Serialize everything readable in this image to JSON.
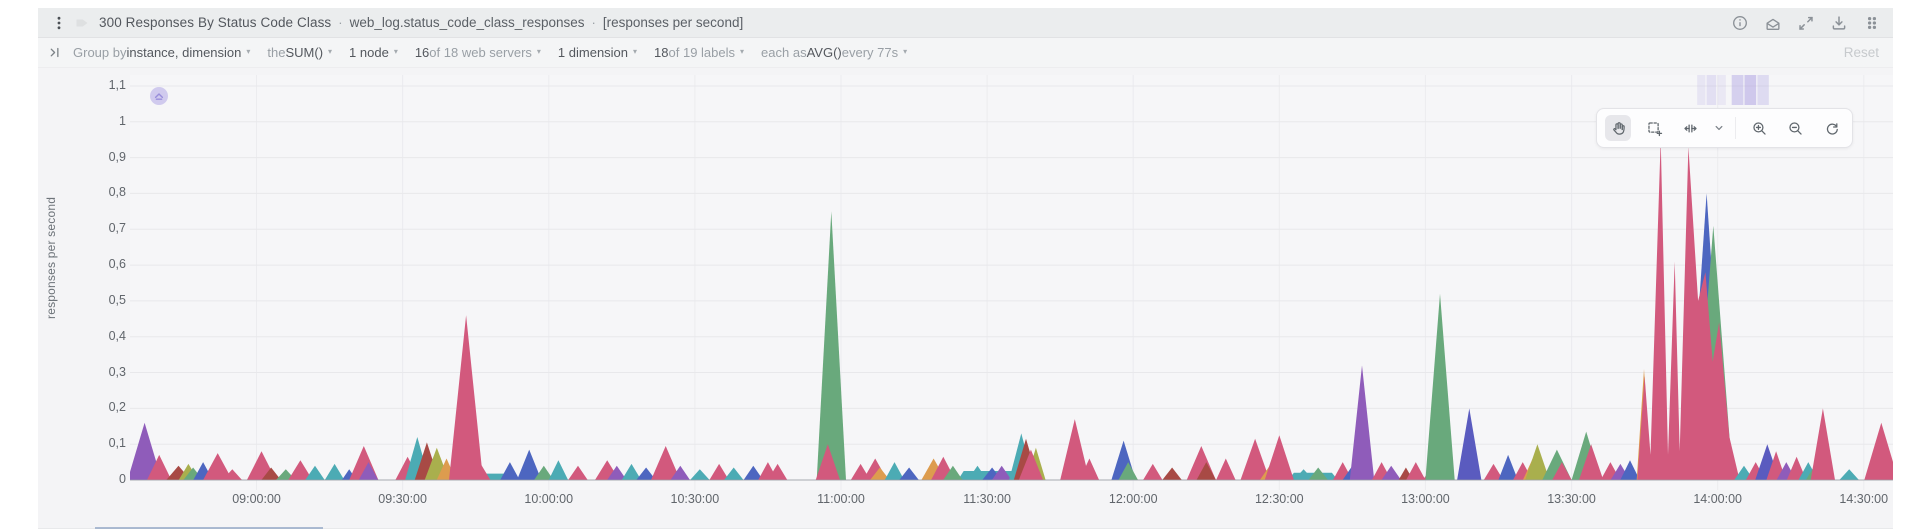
{
  "window": {
    "title_name": "300 Responses By Status Code Class",
    "separator": "·",
    "context": "web_log.status_code_class_responses",
    "units_suffix": "[responses per second]"
  },
  "header_icons": [
    "kebab-menu-icon",
    "tag-icon",
    "info-icon",
    "alerts-tray-icon",
    "expand-icon",
    "download-icon",
    "drag-handle-icon"
  ],
  "filter_toolbar": {
    "collapse_icon_name": "collapse-filters-icon",
    "reset_label": "Reset",
    "segments": [
      {
        "name": "group-by",
        "chevron": true,
        "parts": [
          {
            "t": "Group by ",
            "muted": true
          },
          {
            "t": "instance, dimension",
            "muted": false
          }
        ]
      },
      {
        "name": "aggregate-function",
        "chevron": true,
        "parts": [
          {
            "t": "the ",
            "muted": true
          },
          {
            "t": "SUM()",
            "muted": false
          }
        ]
      },
      {
        "name": "nodes",
        "chevron": true,
        "parts": [
          {
            "t": "1 node",
            "muted": false
          }
        ]
      },
      {
        "name": "instances",
        "chevron": true,
        "parts": [
          {
            "t": "16",
            "muted": false
          },
          {
            "t": " of 18 web servers",
            "muted": true
          }
        ]
      },
      {
        "name": "dimensions",
        "chevron": true,
        "parts": [
          {
            "t": "1 dimension",
            "muted": false
          }
        ]
      },
      {
        "name": "labels",
        "chevron": true,
        "parts": [
          {
            "t": "18",
            "muted": false
          },
          {
            "t": " of 19 labels",
            "muted": true
          }
        ]
      },
      {
        "name": "time-aggregate",
        "chevron": true,
        "parts": [
          {
            "t": "each as ",
            "muted": true
          },
          {
            "t": "AVG()",
            "muted": false
          },
          {
            "t": " every 77s",
            "muted": true
          }
        ]
      }
    ]
  },
  "chart_toolbar": {
    "active": "pan-icon",
    "icons": [
      "pan-icon",
      "select-area-icon",
      "horizontal-zoom-icon",
      "chevron-down-icon",
      "zoom-in-icon",
      "zoom-out-icon",
      "reset-zoom-icon"
    ]
  },
  "chart_data": {
    "type": "area",
    "title": "300 Responses By Status Code Class",
    "ylabel": "responses per second",
    "grid": true,
    "legend_position": "none",
    "x_start_hours": 8.567,
    "x_end_hours": 14.6,
    "x_ticks": [
      {
        "label": "09:00:00",
        "hours": 9.0
      },
      {
        "label": "09:30:00",
        "hours": 9.5
      },
      {
        "label": "10:00:00",
        "hours": 10.0
      },
      {
        "label": "10:30:00",
        "hours": 10.5
      },
      {
        "label": "11:00:00",
        "hours": 11.0
      },
      {
        "label": "11:30:00",
        "hours": 11.5
      },
      {
        "label": "12:00:00",
        "hours": 12.0
      },
      {
        "label": "12:30:00",
        "hours": 12.5
      },
      {
        "label": "13:00:00",
        "hours": 13.0
      },
      {
        "label": "13:30:00",
        "hours": 13.5
      },
      {
        "label": "14:00:00",
        "hours": 14.0
      },
      {
        "label": "14:30:00",
        "hours": 14.5
      }
    ],
    "y_ticks": [
      {
        "label": "0",
        "value": 0
      },
      {
        "label": "0,1",
        "value": 0.1
      },
      {
        "label": "0,2",
        "value": 0.2
      },
      {
        "label": "0,3",
        "value": 0.3
      },
      {
        "label": "0,4",
        "value": 0.4
      },
      {
        "label": "0,5",
        "value": 0.5
      },
      {
        "label": "0,6",
        "value": 0.6
      },
      {
        "label": "0,7",
        "value": 0.7
      },
      {
        "label": "0,8",
        "value": 0.8
      },
      {
        "label": "0,9",
        "value": 0.9
      },
      {
        "label": "1",
        "value": 1.0
      },
      {
        "label": "1,1",
        "value": 1.1
      }
    ],
    "ylim": [
      0,
      1.15
    ],
    "palette": {
      "pink": "#d2597d",
      "red": "#a84a45",
      "green": "#69a97c",
      "olive": "#a9af4d",
      "blue": "#4d66c0",
      "indigo": "#5a5bbf",
      "teal": "#4cabb4",
      "purple": "#8f5cba",
      "orange": "#dd9c4e",
      "anomaly": "#a79ae0",
      "grid": "#e8e8eb",
      "grid_vertical": "#ececef",
      "zero_line": "#cfd0d4",
      "baseline": "#9aa0a8"
    },
    "plateaus": [
      [
        11.42,
        11.6,
        0.025,
        "teal"
      ],
      [
        12.55,
        12.68,
        0.02,
        "teal"
      ],
      [
        9.74,
        9.86,
        0.018,
        "teal"
      ]
    ],
    "anomaly_bars": [
      [
        13.93,
        13.958,
        0.18
      ],
      [
        13.962,
        13.995,
        0.25
      ],
      [
        14.0,
        14.028,
        0.15
      ],
      [
        14.048,
        14.088,
        0.42
      ],
      [
        14.092,
        14.132,
        0.5
      ],
      [
        14.136,
        14.175,
        0.3
      ]
    ],
    "spikes": [
      [
        8.617,
        0.16,
        "purple",
        7
      ],
      [
        8.667,
        0.07,
        "pink",
        5
      ],
      [
        8.733,
        0.04,
        "red",
        5
      ],
      [
        8.767,
        0.045,
        "olive",
        4
      ],
      [
        8.783,
        0.035,
        "green",
        4
      ],
      [
        8.817,
        0.05,
        "blue",
        4
      ],
      [
        8.867,
        0.075,
        "pink",
        6
      ],
      [
        8.917,
        0.03,
        "pink",
        4
      ],
      [
        9.017,
        0.08,
        "pink",
        6
      ],
      [
        9.05,
        0.035,
        "red",
        4
      ],
      [
        9.1,
        0.03,
        "green",
        4
      ],
      [
        9.15,
        0.055,
        "pink",
        5
      ],
      [
        9.2,
        0.04,
        "teal",
        4
      ],
      [
        9.267,
        0.045,
        "teal",
        4
      ],
      [
        9.317,
        0.03,
        "blue",
        3
      ],
      [
        9.367,
        0.095,
        "pink",
        6
      ],
      [
        9.383,
        0.05,
        "purple",
        4
      ],
      [
        9.517,
        0.065,
        "pink",
        5
      ],
      [
        9.55,
        0.12,
        "teal",
        5
      ],
      [
        9.583,
        0.105,
        "red",
        5
      ],
      [
        9.617,
        0.09,
        "olive",
        5
      ],
      [
        9.65,
        0.06,
        "orange",
        4
      ],
      [
        9.717,
        0.46,
        "pink",
        7
      ],
      [
        9.767,
        0.045,
        "pink",
        4
      ],
      [
        9.867,
        0.05,
        "blue",
        4
      ],
      [
        9.933,
        0.085,
        "blue",
        5
      ],
      [
        9.983,
        0.04,
        "green",
        4
      ],
      [
        10.033,
        0.055,
        "teal",
        4
      ],
      [
        10.1,
        0.04,
        "pink",
        4
      ],
      [
        10.2,
        0.055,
        "pink",
        5
      ],
      [
        10.233,
        0.04,
        "purple",
        4
      ],
      [
        10.283,
        0.045,
        "teal",
        4
      ],
      [
        10.333,
        0.035,
        "blue",
        4
      ],
      [
        10.4,
        0.095,
        "pink",
        6
      ],
      [
        10.45,
        0.04,
        "purple",
        4
      ],
      [
        10.517,
        0.03,
        "teal",
        4
      ],
      [
        10.583,
        0.045,
        "pink",
        4
      ],
      [
        10.633,
        0.035,
        "teal",
        4
      ],
      [
        10.7,
        0.04,
        "blue",
        4
      ],
      [
        10.75,
        0.05,
        "pink",
        4
      ],
      [
        10.783,
        0.045,
        "pink",
        4
      ],
      [
        10.967,
        0.75,
        "green",
        6
      ],
      [
        10.955,
        0.1,
        "pink",
        5
      ],
      [
        11.067,
        0.045,
        "pink",
        4
      ],
      [
        11.117,
        0.06,
        "pink",
        5
      ],
      [
        11.133,
        0.035,
        "orange",
        4
      ],
      [
        11.183,
        0.05,
        "teal",
        4
      ],
      [
        11.233,
        0.035,
        "blue",
        4
      ],
      [
        11.317,
        0.06,
        "orange",
        5
      ],
      [
        11.35,
        0.065,
        "pink",
        5
      ],
      [
        11.383,
        0.04,
        "green",
        4
      ],
      [
        11.467,
        0.04,
        "teal",
        4
      ],
      [
        11.517,
        0.035,
        "blue",
        4
      ],
      [
        11.55,
        0.04,
        "purple",
        4
      ],
      [
        11.617,
        0.13,
        "teal",
        5
      ],
      [
        11.633,
        0.115,
        "red",
        5
      ],
      [
        11.667,
        0.09,
        "olive",
        4
      ],
      [
        11.65,
        0.085,
        "pink",
        5
      ],
      [
        11.8,
        0.17,
        "pink",
        6
      ],
      [
        11.85,
        0.06,
        "pink",
        4
      ],
      [
        11.967,
        0.11,
        "blue",
        5
      ],
      [
        11.983,
        0.05,
        "green",
        4
      ],
      [
        12.067,
        0.045,
        "pink",
        4
      ],
      [
        12.133,
        0.035,
        "red",
        4
      ],
      [
        12.233,
        0.095,
        "pink",
        6
      ],
      [
        12.25,
        0.05,
        "red",
        4
      ],
      [
        12.317,
        0.06,
        "pink",
        4
      ],
      [
        12.417,
        0.115,
        "pink",
        6
      ],
      [
        12.467,
        0.04,
        "orange",
        4
      ],
      [
        12.5,
        0.125,
        "pink",
        6
      ],
      [
        12.583,
        0.03,
        "teal",
        4
      ],
      [
        12.633,
        0.035,
        "green",
        4
      ],
      [
        12.717,
        0.05,
        "pink",
        4
      ],
      [
        12.75,
        0.04,
        "blue",
        4
      ],
      [
        12.783,
        0.32,
        "purple",
        5
      ],
      [
        12.85,
        0.05,
        "pink",
        4
      ],
      [
        12.883,
        0.04,
        "purple",
        4
      ],
      [
        12.933,
        0.035,
        "red",
        3
      ],
      [
        12.967,
        0.05,
        "pink",
        4
      ],
      [
        13.033,
        0.05,
        "pink",
        5
      ],
      [
        13.05,
        0.52,
        "green",
        6
      ],
      [
        13.15,
        0.2,
        "indigo",
        5
      ],
      [
        13.233,
        0.045,
        "pink",
        4
      ],
      [
        13.283,
        0.07,
        "blue",
        4
      ],
      [
        13.333,
        0.05,
        "pink",
        4
      ],
      [
        13.367,
        0.06,
        "orange",
        4
      ],
      [
        13.383,
        0.1,
        "olive",
        5
      ],
      [
        13.45,
        0.085,
        "green",
        6
      ],
      [
        13.467,
        0.05,
        "pink",
        4
      ],
      [
        13.55,
        0.135,
        "green",
        6
      ],
      [
        13.567,
        0.1,
        "pink",
        5
      ],
      [
        13.633,
        0.05,
        "pink",
        4
      ],
      [
        13.667,
        0.045,
        "purple",
        4
      ],
      [
        13.7,
        0.055,
        "blue",
        4
      ],
      [
        13.748,
        0.31,
        "orange",
        3
      ],
      [
        13.962,
        0.8,
        "blue",
        8
      ],
      [
        13.985,
        0.71,
        "green",
        8
      ],
      {
        "c": "pink",
        "pts": [
          [
            13.725,
            0
          ],
          [
            13.75,
            0.29
          ],
          [
            13.77,
            0.07
          ],
          [
            13.805,
            0.95
          ],
          [
            13.83,
            0.07
          ],
          [
            13.853,
            0.61
          ],
          [
            13.87,
            0.08
          ],
          [
            13.9,
            0.93
          ],
          [
            13.933,
            0.5
          ],
          [
            13.958,
            0.58
          ],
          [
            13.983,
            0.33
          ],
          [
            14.005,
            0.44
          ],
          [
            14.04,
            0.12
          ],
          [
            14.075,
            0
          ]
        ]
      },
      [
        14.09,
        0.04,
        "teal",
        4
      ],
      [
        14.13,
        0.05,
        "pink",
        4
      ],
      [
        14.17,
        0.1,
        "indigo",
        5
      ],
      [
        14.2,
        0.08,
        "pink",
        4
      ],
      [
        14.235,
        0.05,
        "purple",
        4
      ],
      [
        14.27,
        0.065,
        "pink",
        4
      ],
      [
        14.31,
        0.05,
        "teal",
        4
      ],
      [
        14.335,
        0.045,
        "green",
        4
      ],
      [
        14.36,
        0.2,
        "pink",
        5
      ],
      [
        14.45,
        0.03,
        "teal",
        4
      ],
      [
        14.56,
        0.16,
        "pink",
        7
      ]
    ]
  }
}
